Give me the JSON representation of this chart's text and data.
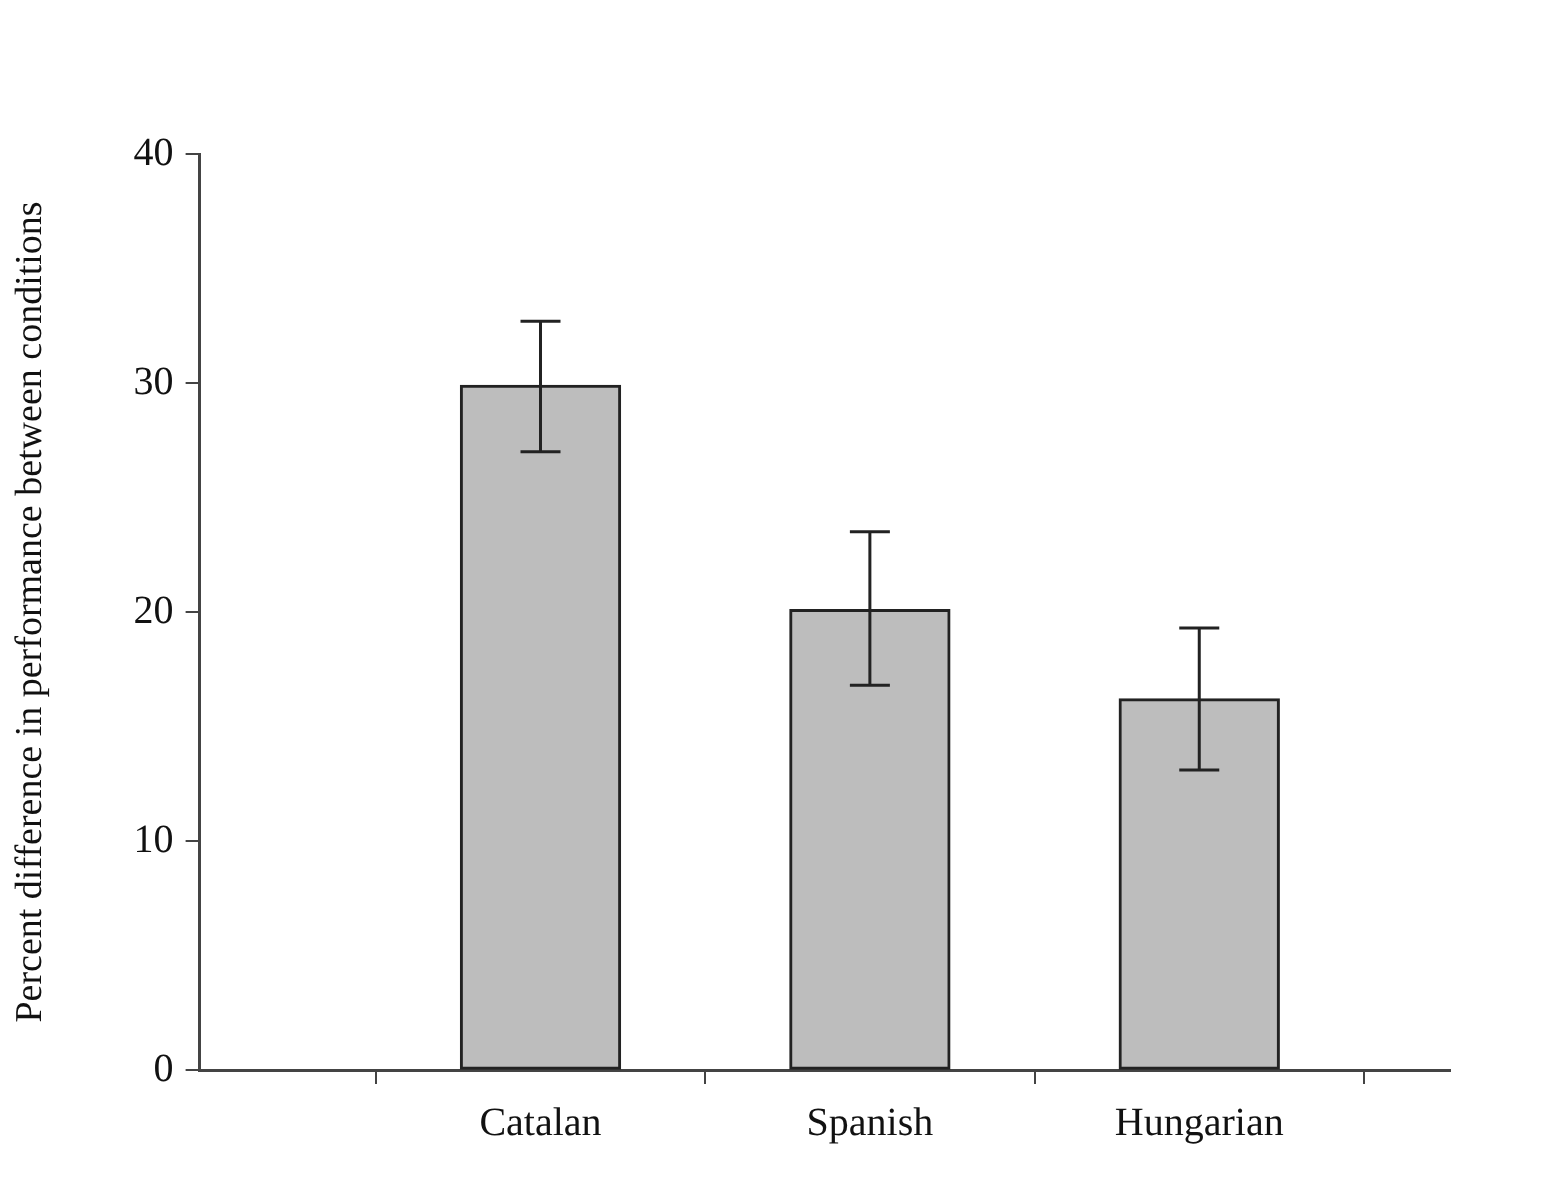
{
  "chart_data": {
    "type": "bar",
    "ylabel": "Percent difference in performance between conditions",
    "categories": [
      "Catalan",
      "Spanish",
      "Hungarian"
    ],
    "values": [
      29.9,
      20.1,
      16.2
    ],
    "errors": [
      [
        27.0,
        32.7
      ],
      [
        16.8,
        23.5
      ],
      [
        13.1,
        19.3
      ]
    ],
    "color": "#bdbdbd",
    "ylim": [
      0,
      40
    ],
    "yticks": [
      0,
      10,
      20,
      30,
      40
    ],
    "grid": false,
    "legend": false
  }
}
